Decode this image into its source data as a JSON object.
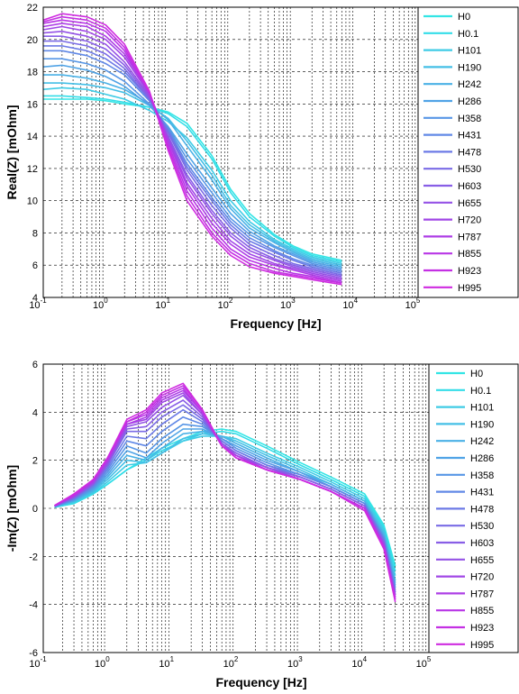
{
  "chart_data": [
    {
      "type": "line",
      "xlabel": "Frequency [Hz]",
      "ylabel": "Real(Z) [mOhm]",
      "xscale": "log",
      "xlim": [
        0.1,
        100000
      ],
      "ylim": [
        4,
        22
      ],
      "xticks": [
        {
          "base": "10",
          "exp": "-1"
        },
        {
          "base": "10",
          "exp": "0"
        },
        {
          "base": "10",
          "exp": "1"
        },
        {
          "base": "10",
          "exp": "2"
        },
        {
          "base": "10",
          "exp": "3"
        },
        {
          "base": "10",
          "exp": "4"
        },
        {
          "base": "10",
          "exp": "5"
        }
      ],
      "yticks": [
        "4",
        "6",
        "8",
        "10",
        "12",
        "14",
        "16",
        "18",
        "20",
        "22"
      ],
      "grid": true,
      "legend_position": "right",
      "x": [
        0.1,
        0.2,
        0.5,
        1,
        2,
        5,
        10,
        20,
        50,
        100,
        200,
        500,
        1000,
        2000,
        6000
      ],
      "series": [
        {
          "name": "H0",
          "color": "#33e5e5",
          "values": [
            16.3,
            16.3,
            16.3,
            16.2,
            16.0,
            15.8,
            15.5,
            14.8,
            12.8,
            10.7,
            9.2,
            7.9,
            7.2,
            6.7,
            6.3
          ]
        },
        {
          "name": "H0.1",
          "color": "#33dde8",
          "values": [
            16.5,
            16.5,
            16.4,
            16.3,
            16.1,
            15.8,
            15.4,
            14.6,
            12.6,
            10.5,
            9.0,
            7.8,
            7.1,
            6.6,
            6.2
          ]
        },
        {
          "name": "H101",
          "color": "#3fcbe5",
          "values": [
            16.9,
            17.0,
            16.9,
            16.6,
            16.3,
            15.6,
            14.9,
            13.9,
            11.9,
            10.0,
            8.7,
            7.6,
            7.0,
            6.5,
            6.1
          ]
        },
        {
          "name": "H190",
          "color": "#44bfe6",
          "values": [
            17.3,
            17.3,
            17.2,
            17.0,
            16.7,
            15.9,
            15.1,
            13.7,
            11.6,
            9.7,
            8.5,
            7.5,
            6.9,
            6.4,
            6.0
          ]
        },
        {
          "name": "H242",
          "color": "#4ab1e6",
          "values": [
            17.8,
            17.8,
            17.6,
            17.3,
            16.9,
            16.0,
            15.0,
            13.4,
            11.3,
            9.5,
            8.3,
            7.4,
            6.8,
            6.3,
            5.9
          ]
        },
        {
          "name": "H286",
          "color": "#50a3e6",
          "values": [
            18.3,
            18.4,
            18.1,
            17.7,
            17.1,
            15.9,
            14.6,
            12.9,
            10.8,
            9.2,
            8.1,
            7.2,
            6.7,
            6.2,
            5.8
          ]
        },
        {
          "name": "H358",
          "color": "#5796e6",
          "values": [
            18.8,
            18.8,
            18.5,
            18.1,
            17.4,
            16.0,
            14.5,
            12.6,
            10.5,
            8.9,
            7.9,
            7.1,
            6.6,
            6.1,
            5.7
          ]
        },
        {
          "name": "H431",
          "color": "#6088e6",
          "values": [
            19.3,
            19.3,
            19.0,
            18.5,
            17.8,
            16.2,
            14.4,
            12.3,
            10.2,
            8.7,
            7.7,
            6.9,
            6.4,
            6.0,
            5.6
          ]
        },
        {
          "name": "H478",
          "color": "#6c7ae6",
          "values": [
            19.6,
            19.6,
            19.3,
            18.8,
            18.0,
            16.3,
            14.3,
            12.1,
            10.0,
            8.5,
            7.5,
            6.8,
            6.3,
            5.9,
            5.5
          ]
        },
        {
          "name": "H530",
          "color": "#7a6be6",
          "values": [
            19.9,
            19.9,
            19.6,
            19.1,
            18.2,
            16.3,
            14.2,
            11.9,
            9.7,
            8.3,
            7.3,
            6.6,
            6.1,
            5.8,
            5.4
          ]
        },
        {
          "name": "H603",
          "color": "#885ee6",
          "values": [
            20.2,
            20.2,
            19.9,
            19.4,
            18.4,
            16.4,
            14.0,
            11.6,
            9.4,
            8.0,
            7.1,
            6.4,
            6.0,
            5.7,
            5.3
          ]
        },
        {
          "name": "H655",
          "color": "#9552e6",
          "values": [
            20.4,
            20.5,
            20.2,
            19.7,
            18.6,
            16.5,
            13.9,
            11.4,
            9.2,
            7.8,
            6.9,
            6.3,
            5.9,
            5.6,
            5.2
          ]
        },
        {
          "name": "H720",
          "color": "#a147e6",
          "values": [
            20.6,
            20.8,
            20.5,
            20.0,
            18.9,
            16.6,
            13.8,
            11.1,
            8.9,
            7.5,
            6.7,
            6.1,
            5.8,
            5.5,
            5.1
          ]
        },
        {
          "name": "H787",
          "color": "#ad3ee6",
          "values": [
            20.8,
            21.0,
            20.8,
            20.2,
            19.1,
            16.7,
            13.7,
            10.9,
            8.6,
            7.3,
            6.5,
            6.0,
            5.7,
            5.4,
            5.0
          ]
        },
        {
          "name": "H855",
          "color": "#b836e6",
          "values": [
            21.0,
            21.2,
            21.0,
            20.5,
            19.3,
            16.7,
            13.5,
            10.6,
            8.3,
            7.0,
            6.3,
            5.8,
            5.5,
            5.3,
            4.9
          ]
        },
        {
          "name": "H923",
          "color": "#c430e3",
          "values": [
            21.1,
            21.4,
            21.2,
            20.7,
            19.5,
            16.7,
            13.3,
            10.3,
            8.0,
            6.8,
            6.1,
            5.6,
            5.4,
            5.2,
            4.9
          ]
        },
        {
          "name": "H995",
          "color": "#cf2be0",
          "values": [
            21.2,
            21.6,
            21.4,
            20.9,
            19.7,
            16.8,
            13.1,
            10.0,
            7.8,
            6.6,
            5.9,
            5.5,
            5.3,
            5.1,
            4.8
          ]
        }
      ]
    },
    {
      "type": "line",
      "xlabel": "Frequency [Hz]",
      "ylabel": "-Im(Z) [mOhm]",
      "xscale": "log",
      "xlim": [
        0.1,
        100000
      ],
      "ylim": [
        -6,
        6
      ],
      "xticks": [
        {
          "base": "10",
          "exp": "-1"
        },
        {
          "base": "10",
          "exp": "0"
        },
        {
          "base": "10",
          "exp": "1"
        },
        {
          "base": "10",
          "exp": "2"
        },
        {
          "base": "10",
          "exp": "3"
        },
        {
          "base": "10",
          "exp": "4"
        },
        {
          "base": "10",
          "exp": "5"
        }
      ],
      "yticks": [
        "-6",
        "-4",
        "-2",
        "0",
        "2",
        "4",
        "6"
      ],
      "grid": true,
      "legend_position": "right",
      "x": [
        0.15,
        0.3,
        0.6,
        1,
        2,
        4,
        7,
        15,
        30,
        60,
        100,
        300,
        1000,
        3000,
        10000,
        20000,
        30000
      ],
      "series": [
        {
          "name": "H0",
          "color": "#33e5e5",
          "values": [
            0.05,
            0.2,
            0.6,
            1.0,
            1.6,
            2.1,
            2.5,
            2.9,
            3.2,
            3.3,
            3.2,
            2.6,
            1.9,
            1.3,
            0.6,
            -0.7,
            -2.4
          ]
        },
        {
          "name": "H0.1",
          "color": "#33dde8",
          "values": [
            0.05,
            0.2,
            0.6,
            1.0,
            1.6,
            2.0,
            2.4,
            2.8,
            3.1,
            3.2,
            3.1,
            2.5,
            1.8,
            1.2,
            0.5,
            -0.8,
            -2.6
          ]
        },
        {
          "name": "H101",
          "color": "#3fcbe5",
          "values": [
            0.06,
            0.25,
            0.65,
            1.1,
            1.8,
            1.9,
            2.3,
            2.8,
            3.0,
            3.0,
            2.9,
            2.3,
            1.7,
            1.1,
            0.4,
            -0.9,
            -2.8
          ]
        },
        {
          "name": "H190",
          "color": "#44bfe6",
          "values": [
            0.06,
            0.3,
            0.7,
            1.2,
            2.0,
            1.9,
            2.3,
            2.9,
            3.1,
            3.0,
            2.8,
            2.2,
            1.6,
            1.0,
            0.3,
            -1.0,
            -3.0
          ]
        },
        {
          "name": "H242",
          "color": "#4ab1e6",
          "values": [
            0.07,
            0.3,
            0.75,
            1.3,
            2.2,
            2.0,
            2.5,
            3.1,
            3.2,
            3.0,
            2.7,
            2.1,
            1.5,
            1.0,
            0.3,
            -1.1,
            -3.1
          ]
        },
        {
          "name": "H286",
          "color": "#50a3e6",
          "values": [
            0.07,
            0.35,
            0.8,
            1.4,
            2.4,
            2.1,
            2.7,
            3.3,
            3.3,
            2.9,
            2.6,
            2.0,
            1.5,
            0.9,
            0.2,
            -1.2,
            -3.2
          ]
        },
        {
          "name": "H358",
          "color": "#5796e6",
          "values": [
            0.08,
            0.35,
            0.85,
            1.5,
            2.6,
            2.3,
            2.9,
            3.5,
            3.4,
            2.9,
            2.5,
            1.9,
            1.4,
            0.9,
            0.2,
            -1.2,
            -3.3
          ]
        },
        {
          "name": "H431",
          "color": "#6088e6",
          "values": [
            0.08,
            0.4,
            0.9,
            1.6,
            2.8,
            2.6,
            3.2,
            3.8,
            3.5,
            2.8,
            2.4,
            1.8,
            1.4,
            0.9,
            0.2,
            -1.3,
            -3.4
          ]
        },
        {
          "name": "H478",
          "color": "#6c7ae6",
          "values": [
            0.09,
            0.4,
            0.95,
            1.7,
            3.0,
            2.9,
            3.5,
            4.1,
            3.6,
            2.8,
            2.4,
            1.8,
            1.3,
            0.8,
            0.1,
            -1.3,
            -3.5
          ]
        },
        {
          "name": "H530",
          "color": "#7a6be6",
          "values": [
            0.09,
            0.45,
            1.0,
            1.8,
            3.2,
            3.2,
            3.8,
            4.3,
            3.7,
            2.7,
            2.3,
            1.7,
            1.3,
            0.8,
            0.1,
            -1.4,
            -3.5
          ]
        },
        {
          "name": "H603",
          "color": "#885ee6",
          "values": [
            0.1,
            0.45,
            1.0,
            1.8,
            3.3,
            3.4,
            4.0,
            4.5,
            3.8,
            2.7,
            2.3,
            1.7,
            1.3,
            0.8,
            0.1,
            -1.4,
            -3.6
          ]
        },
        {
          "name": "H655",
          "color": "#9552e6",
          "values": [
            0.1,
            0.5,
            1.05,
            1.9,
            3.4,
            3.6,
            4.2,
            4.7,
            3.9,
            2.7,
            2.2,
            1.7,
            1.2,
            0.7,
            0.0,
            -1.5,
            -3.6
          ]
        },
        {
          "name": "H720",
          "color": "#a147e6",
          "values": [
            0.1,
            0.5,
            1.1,
            1.9,
            3.5,
            3.7,
            4.4,
            4.8,
            3.9,
            2.6,
            2.2,
            1.6,
            1.2,
            0.7,
            0.0,
            -1.5,
            -3.7
          ]
        },
        {
          "name": "H787",
          "color": "#ad3ee6",
          "values": [
            0.11,
            0.5,
            1.1,
            2.0,
            3.5,
            3.8,
            4.5,
            4.9,
            4.0,
            2.6,
            2.2,
            1.6,
            1.2,
            0.7,
            0.0,
            -1.6,
            -3.7
          ]
        },
        {
          "name": "H855",
          "color": "#b836e6",
          "values": [
            0.11,
            0.55,
            1.15,
            2.0,
            3.6,
            3.9,
            4.6,
            5.0,
            4.0,
            2.6,
            2.1,
            1.6,
            1.2,
            0.7,
            0.0,
            -1.6,
            -3.8
          ]
        },
        {
          "name": "H923",
          "color": "#c430e3",
          "values": [
            0.12,
            0.55,
            1.2,
            2.1,
            3.6,
            4.0,
            4.7,
            5.1,
            4.1,
            2.6,
            2.1,
            1.6,
            1.2,
            0.7,
            0.0,
            -1.6,
            -3.8
          ]
        },
        {
          "name": "H995",
          "color": "#cf2be0",
          "values": [
            0.12,
            0.6,
            1.2,
            2.1,
            3.7,
            4.1,
            4.8,
            5.2,
            4.1,
            2.6,
            2.1,
            1.6,
            1.2,
            0.7,
            -0.1,
            -1.7,
            -3.9
          ]
        }
      ]
    }
  ]
}
